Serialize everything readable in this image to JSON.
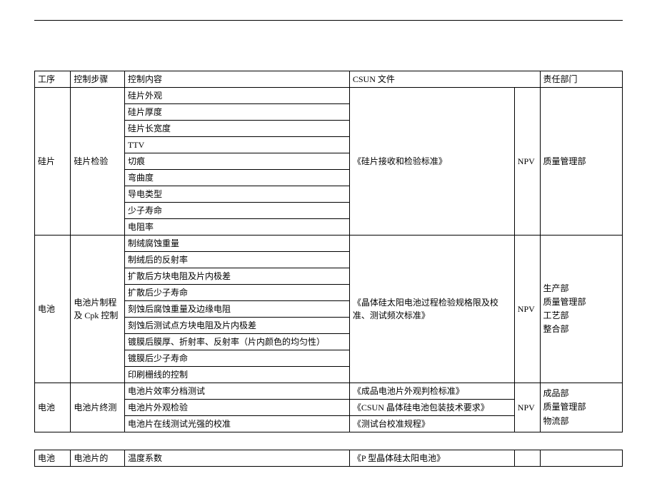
{
  "colors": {
    "border": "#000000",
    "background": "#ffffff",
    "text": "#000000"
  },
  "header": {
    "process": "工序",
    "step": "控制步骤",
    "content": "控制内容",
    "csun": "CSUN 文件",
    "dept": "责任部门"
  },
  "group1": {
    "process": "硅片",
    "step": "硅片检验",
    "contents": [
      "硅片外观",
      "硅片厚度",
      "硅片长宽度",
      "TTV",
      "切痕",
      "弯曲度",
      "导电类型",
      "少子寿命",
      "电阻率"
    ],
    "csun": "《硅片接收和检验标准》",
    "npv": "NPV",
    "dept": "质量管理部"
  },
  "group2": {
    "process": "电池",
    "step": "电池片制程及 Cpk 控制",
    "contents": [
      "制绒腐蚀重量",
      "制绒后的反射率",
      "扩散后方块电阻及片内极差",
      "扩散后少子寿命",
      "刻蚀后腐蚀重量及边缘电阻",
      "刻蚀后测试点方块电阻及片内极差",
      "镀膜后膜厚、折射率、反射率（片内颜色的均匀性）",
      "镀膜后少子寿命",
      "印刷栅线的控制"
    ],
    "csun": "《晶体硅太阳电池过程检验规格限及校准、测试频次标准》",
    "npv": "NPV",
    "dept": "生产部\n质量管理部\n工艺部\n整合部"
  },
  "group3": {
    "process": "电池",
    "step": "电池片终测",
    "contents": [
      {
        "c": "电池片效率分档测试",
        "csun": "《成品电池片外观判检标准》"
      },
      {
        "c": "电池片外观检验",
        "csun": "《CSUN 晶体硅电池包装技术要求》"
      },
      {
        "c": "电池片在线测试光强的校准",
        "csun": "《测试台校准规程》"
      }
    ],
    "npv": "NPV",
    "dept": "成品部\n质量管理部\n物流部"
  },
  "group4": {
    "process": "电池",
    "step": "电池片的",
    "content": "温度系数",
    "csun": "《P 型晶体硅太阳电池》"
  }
}
